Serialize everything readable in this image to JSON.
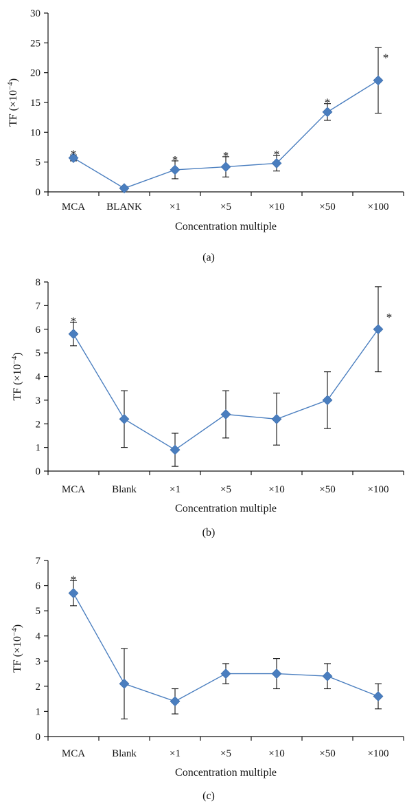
{
  "chart_data": [
    {
      "type": "line",
      "panel_label": "(a)",
      "categories": [
        "MCA",
        "BLANK",
        "×1",
        "×5",
        "×10",
        "×50",
        "×100"
      ],
      "values": [
        5.7,
        0.6,
        3.7,
        4.2,
        4.8,
        13.4,
        18.7
      ],
      "error": [
        0.5,
        0.3,
        1.5,
        1.7,
        1.3,
        1.4,
        5.5
      ],
      "significant": [
        true,
        false,
        true,
        true,
        true,
        true,
        true
      ],
      "ylim": [
        0,
        30
      ],
      "yticks": [
        0,
        5,
        10,
        15,
        20,
        25,
        30
      ],
      "ylabel": "TF (×10",
      "ylabel_sup": "−4",
      "ylabel_close": ")",
      "xlabel": "Concentration multiple",
      "star_label": "*",
      "color": "#4a7ebf",
      "grid": false
    },
    {
      "type": "line",
      "panel_label": "(b)",
      "categories": [
        "MCA",
        "Blank",
        "×1",
        "×5",
        "×10",
        "×50",
        "×100"
      ],
      "values": [
        5.8,
        2.2,
        0.9,
        2.4,
        2.2,
        3.0,
        6.0
      ],
      "error": [
        0.5,
        1.2,
        0.7,
        1.0,
        1.1,
        1.2,
        1.8
      ],
      "significant": [
        true,
        false,
        false,
        false,
        false,
        false,
        true
      ],
      "ylim": [
        0,
        8
      ],
      "yticks": [
        0,
        1,
        2,
        3,
        4,
        5,
        6,
        7,
        8
      ],
      "ylabel": "TF (×10",
      "ylabel_sup": "−4",
      "ylabel_close": ")",
      "xlabel": "Concentration multiple",
      "star_label": "*",
      "color": "#4a7ebf",
      "grid": false
    },
    {
      "type": "line",
      "panel_label": "(c)",
      "categories": [
        "MCA",
        "Blank",
        "×1",
        "×5",
        "×10",
        "×50",
        "×100"
      ],
      "values": [
        5.7,
        2.1,
        1.4,
        2.5,
        2.5,
        2.4,
        1.6
      ],
      "error": [
        0.5,
        1.4,
        0.5,
        0.4,
        0.6,
        0.5,
        0.5
      ],
      "significant": [
        true,
        false,
        false,
        false,
        false,
        false,
        false
      ],
      "ylim": [
        0,
        7
      ],
      "yticks": [
        0,
        1,
        2,
        3,
        4,
        5,
        6,
        7
      ],
      "ylabel": "TF (×10",
      "ylabel_sup": "−4",
      "ylabel_close": ")",
      "xlabel": "Concentration multiple",
      "star_label": "*",
      "color": "#4a7ebf",
      "grid": false
    }
  ]
}
